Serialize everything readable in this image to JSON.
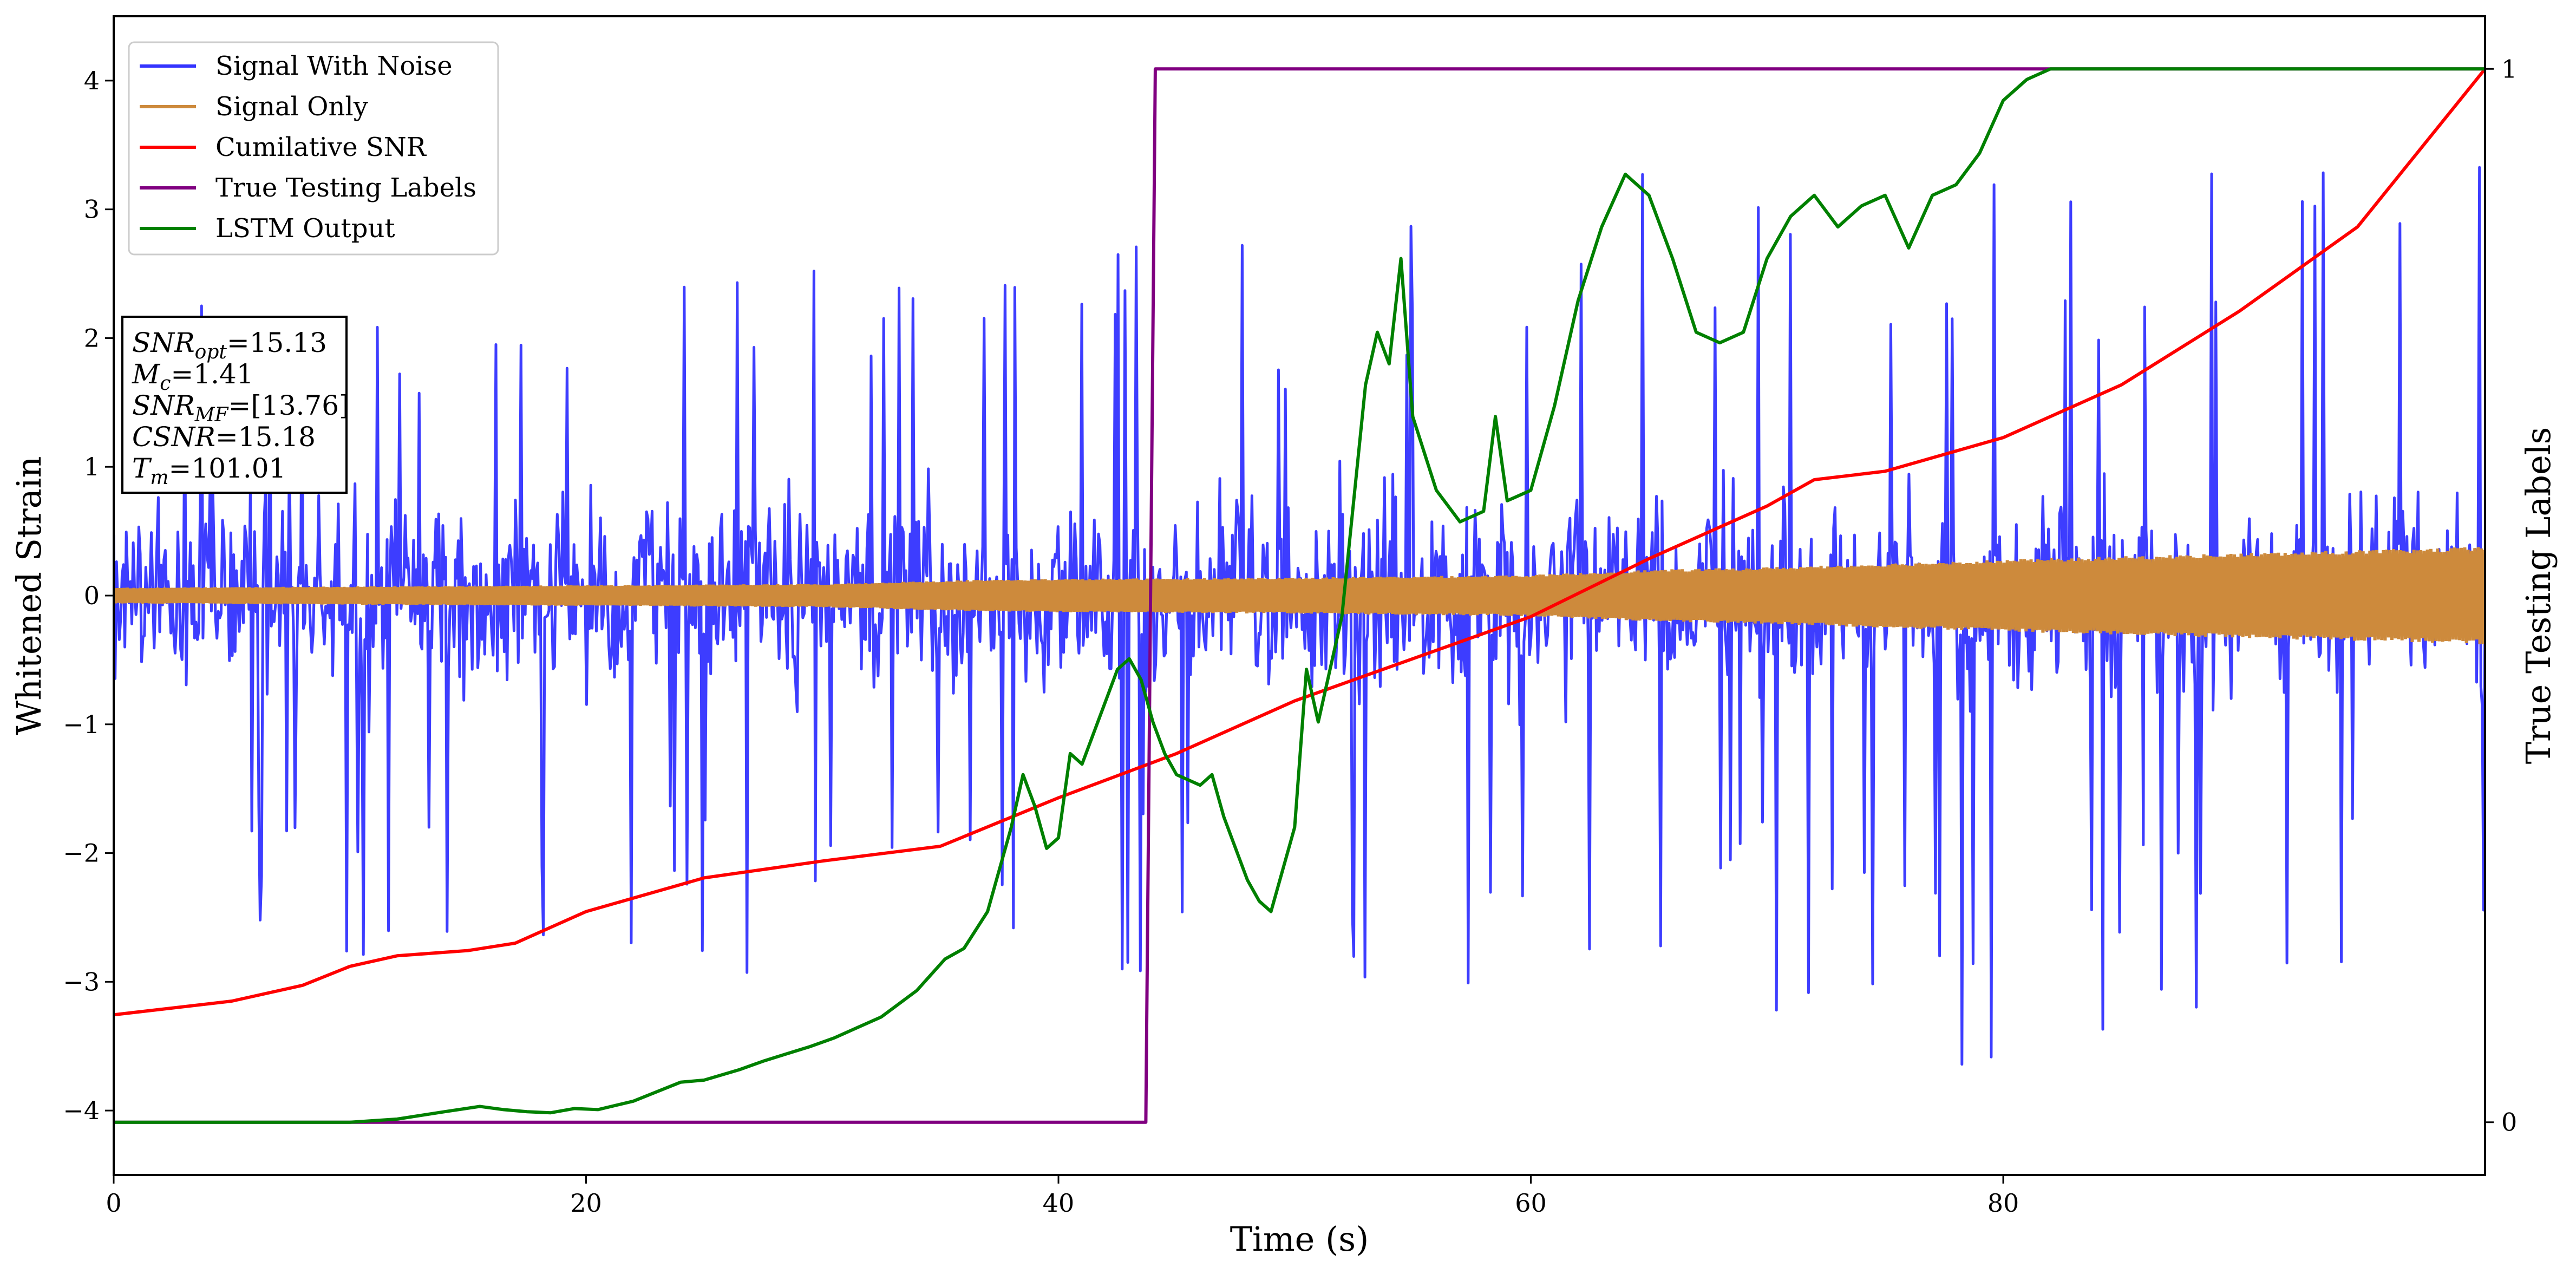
{
  "chart_data": {
    "type": "line",
    "xlabel": "Time (s)",
    "ylabel": "Whitened Strain",
    "y2label": "True Testing Labels",
    "xlim": [
      0,
      100.4
    ],
    "ylim": [
      -4.5,
      4.5
    ],
    "y2lim": [
      -0.05,
      1.05
    ],
    "xticks": [
      0,
      20,
      40,
      60,
      80
    ],
    "yticks": [
      -4,
      -3,
      -2,
      -1,
      0,
      1,
      2,
      3,
      4
    ],
    "y2ticks": [
      0,
      1
    ],
    "grid": false,
    "legend_position": "top-left",
    "info_box": {
      "position": "left",
      "lines": [
        {
          "sym": "SNR",
          "sub": "opt",
          "value": "=15.13"
        },
        {
          "sym": "M",
          "sub": "c",
          "value": "=1.41"
        },
        {
          "sym": "SNR",
          "sub": "MF",
          "value": "=[13.76]"
        },
        {
          "sym": "CSNR",
          "sub": "",
          "value": "=15.18"
        },
        {
          "sym": "T",
          "sub": "m",
          "value": "=101.01"
        }
      ]
    },
    "series": [
      {
        "name": "Signal With Noise",
        "axis": "left",
        "color": "#3333ff",
        "kind": "noise-band",
        "x": [
          0,
          10,
          20,
          30,
          40,
          50,
          60,
          70,
          80,
          90,
          100.4
        ],
        "upper": [
          2.4,
          2.5,
          2.7,
          2.6,
          2.8,
          2.9,
          3.1,
          3.5,
          3.6,
          3.3,
          3.5
        ],
        "lower": [
          -2.8,
          -2.8,
          -3.0,
          -2.9,
          -3.0,
          -3.2,
          -3.0,
          -3.2,
          -4.1,
          -3.1,
          -2.9
        ]
      },
      {
        "name": "Signal Only",
        "axis": "left",
        "color": "#cd8a3c",
        "kind": "envelope",
        "x": [
          0,
          10,
          20,
          30,
          36,
          40,
          50,
          60,
          65,
          70,
          75,
          80,
          90,
          100.4
        ],
        "amplitude": [
          0.06,
          0.07,
          0.08,
          0.09,
          0.12,
          0.13,
          0.14,
          0.16,
          0.2,
          0.22,
          0.25,
          0.28,
          0.33,
          0.38
        ]
      },
      {
        "name": "Cumilative SNR",
        "axis": "right",
        "color": "#ff0000",
        "x": [
          0,
          5,
          8,
          10,
          12,
          15,
          17,
          20,
          25,
          30,
          35,
          40,
          45,
          50,
          55,
          60,
          65,
          70,
          72,
          75,
          80,
          85,
          90,
          95,
          100.4
        ],
        "y": [
          0.102,
          0.115,
          0.13,
          0.148,
          0.158,
          0.163,
          0.17,
          0.2,
          0.232,
          0.248,
          0.262,
          0.308,
          0.35,
          0.4,
          0.44,
          0.48,
          0.535,
          0.585,
          0.61,
          0.618,
          0.65,
          0.7,
          0.77,
          0.85,
          1.0
        ]
      },
      {
        "name": "True Testing Labels",
        "axis": "right",
        "color": "#800080",
        "x": [
          0,
          43.7,
          44.1,
          100.4
        ],
        "y": [
          0,
          0,
          1,
          1
        ]
      },
      {
        "name": "LSTM Output",
        "axis": "right",
        "color": "#008000",
        "x": [
          0,
          10,
          12,
          14,
          15.5,
          16.5,
          17.5,
          18.5,
          19.5,
          20.5,
          22,
          24,
          25,
          26.5,
          27.5,
          28.5,
          29.5,
          30.5,
          31.5,
          32.5,
          34,
          35.2,
          36,
          37,
          38,
          38.5,
          39,
          39.5,
          40,
          40.5,
          41,
          42,
          42.5,
          43,
          43.5,
          44,
          44.5,
          45,
          46,
          46.5,
          47,
          47.5,
          48,
          48.5,
          49,
          50,
          50.5,
          51,
          52,
          53,
          53.5,
          54,
          54.5,
          55,
          56,
          57,
          58,
          58.5,
          59,
          60,
          61,
          62,
          63,
          64,
          65,
          66,
          67,
          68,
          69,
          70,
          71,
          72,
          73,
          74,
          75,
          76,
          77,
          78,
          79,
          80,
          81,
          82,
          83,
          85,
          88,
          100.4
        ],
        "y": [
          0,
          0,
          0.003,
          0.01,
          0.015,
          0.012,
          0.01,
          0.009,
          0.013,
          0.012,
          0.02,
          0.038,
          0.04,
          0.05,
          0.058,
          0.065,
          0.072,
          0.08,
          0.09,
          0.1,
          0.125,
          0.155,
          0.165,
          0.2,
          0.28,
          0.33,
          0.3,
          0.26,
          0.27,
          0.35,
          0.34,
          0.4,
          0.43,
          0.44,
          0.42,
          0.38,
          0.35,
          0.33,
          0.32,
          0.33,
          0.29,
          0.26,
          0.23,
          0.21,
          0.2,
          0.28,
          0.43,
          0.38,
          0.48,
          0.7,
          0.75,
          0.72,
          0.82,
          0.67,
          0.6,
          0.57,
          0.58,
          0.67,
          0.59,
          0.6,
          0.68,
          0.78,
          0.85,
          0.9,
          0.88,
          0.82,
          0.75,
          0.74,
          0.75,
          0.82,
          0.86,
          0.88,
          0.85,
          0.87,
          0.88,
          0.83,
          0.88,
          0.89,
          0.92,
          0.97,
          0.99,
          1.0,
          1.0,
          1.0,
          1.0,
          1.0
        ]
      }
    ]
  }
}
